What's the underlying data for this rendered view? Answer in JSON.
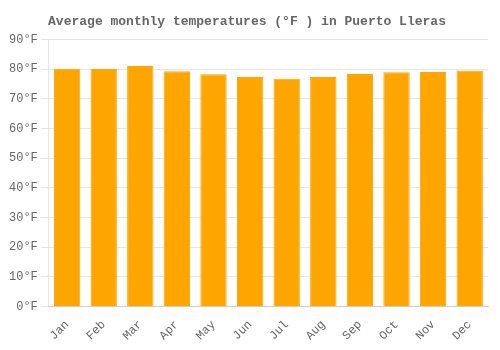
{
  "chart_data": {
    "type": "bar",
    "title": "Average monthly temperatures (°F ) in Puerto Lleras",
    "categories": [
      "Jan",
      "Feb",
      "Mar",
      "Apr",
      "May",
      "Jun",
      "Jul",
      "Aug",
      "Sep",
      "Oct",
      "Nov",
      "Dec"
    ],
    "values": [
      80.2,
      80.1,
      81.1,
      79.3,
      78.3,
      77.4,
      76.8,
      77.4,
      78.4,
      79.0,
      79.1,
      79.5
    ],
    "color": "#FFA500",
    "ylim": [
      0,
      90
    ],
    "yticks": [
      {
        "value": 0,
        "label": "0°F"
      },
      {
        "value": 10,
        "label": "10°F"
      },
      {
        "value": 20,
        "label": "20°F"
      },
      {
        "value": 30,
        "label": "30°F"
      },
      {
        "value": 40,
        "label": "40°F"
      },
      {
        "value": 50,
        "label": "50°F"
      },
      {
        "value": 60,
        "label": "60°F"
      },
      {
        "value": 70,
        "label": "70°F"
      },
      {
        "value": 80,
        "label": "80°F"
      },
      {
        "value": 90,
        "label": "90°F"
      }
    ],
    "grid": true
  }
}
